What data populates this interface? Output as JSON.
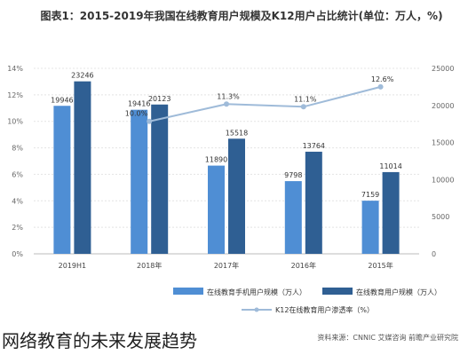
{
  "caption": "网络教育的未来发展趋势",
  "chart_data": {
    "type": "bar+line",
    "title": "图表1：2015-2019年我国在线教育用户规模及K12用户占比统计(单位：万人，%)",
    "source": "资料来源：CNNIC 艾媒咨询 前瞻产业研究院",
    "categories": [
      "2019H1",
      "2018年",
      "2017年",
      "2016年",
      "2015年"
    ],
    "ylim_left": [
      0,
      14
    ],
    "left_ticks": [
      "0%",
      "2%",
      "4%",
      "6%",
      "8%",
      "10%",
      "12%",
      "14%"
    ],
    "ylim_right": [
      0,
      25000
    ],
    "right_ticks": [
      "0",
      "5000",
      "10000",
      "15000",
      "20000",
      "25000"
    ],
    "series": [
      {
        "name": "在线教育手机用户规模（万人）",
        "axis": "right",
        "color": "#4f8ed4",
        "values": [
          19946,
          19416,
          11890,
          9798,
          7159
        ]
      },
      {
        "name": "在线教育用户规模（万人）",
        "axis": "right",
        "color": "#2f5f93",
        "values": [
          23246,
          20123,
          15518,
          13764,
          11014
        ]
      },
      {
        "name": "K12在线教育用户渗透率（%）",
        "axis": "left",
        "color": "#9fbbd9",
        "type": "line",
        "values": [
          null,
          10.0,
          11.3,
          11.1,
          12.6
        ]
      }
    ],
    "point_labels": {
      "bar_mobile": [
        "19946",
        "19416",
        "11890",
        "9798",
        "7159"
      ],
      "bar_total": [
        "23246",
        "20123",
        "15518",
        "13764",
        "11014"
      ],
      "line": [
        "",
        "10.0%",
        "11.3%",
        "11.1%",
        "12.6%"
      ]
    },
    "grid": true,
    "legend": "bottom"
  }
}
